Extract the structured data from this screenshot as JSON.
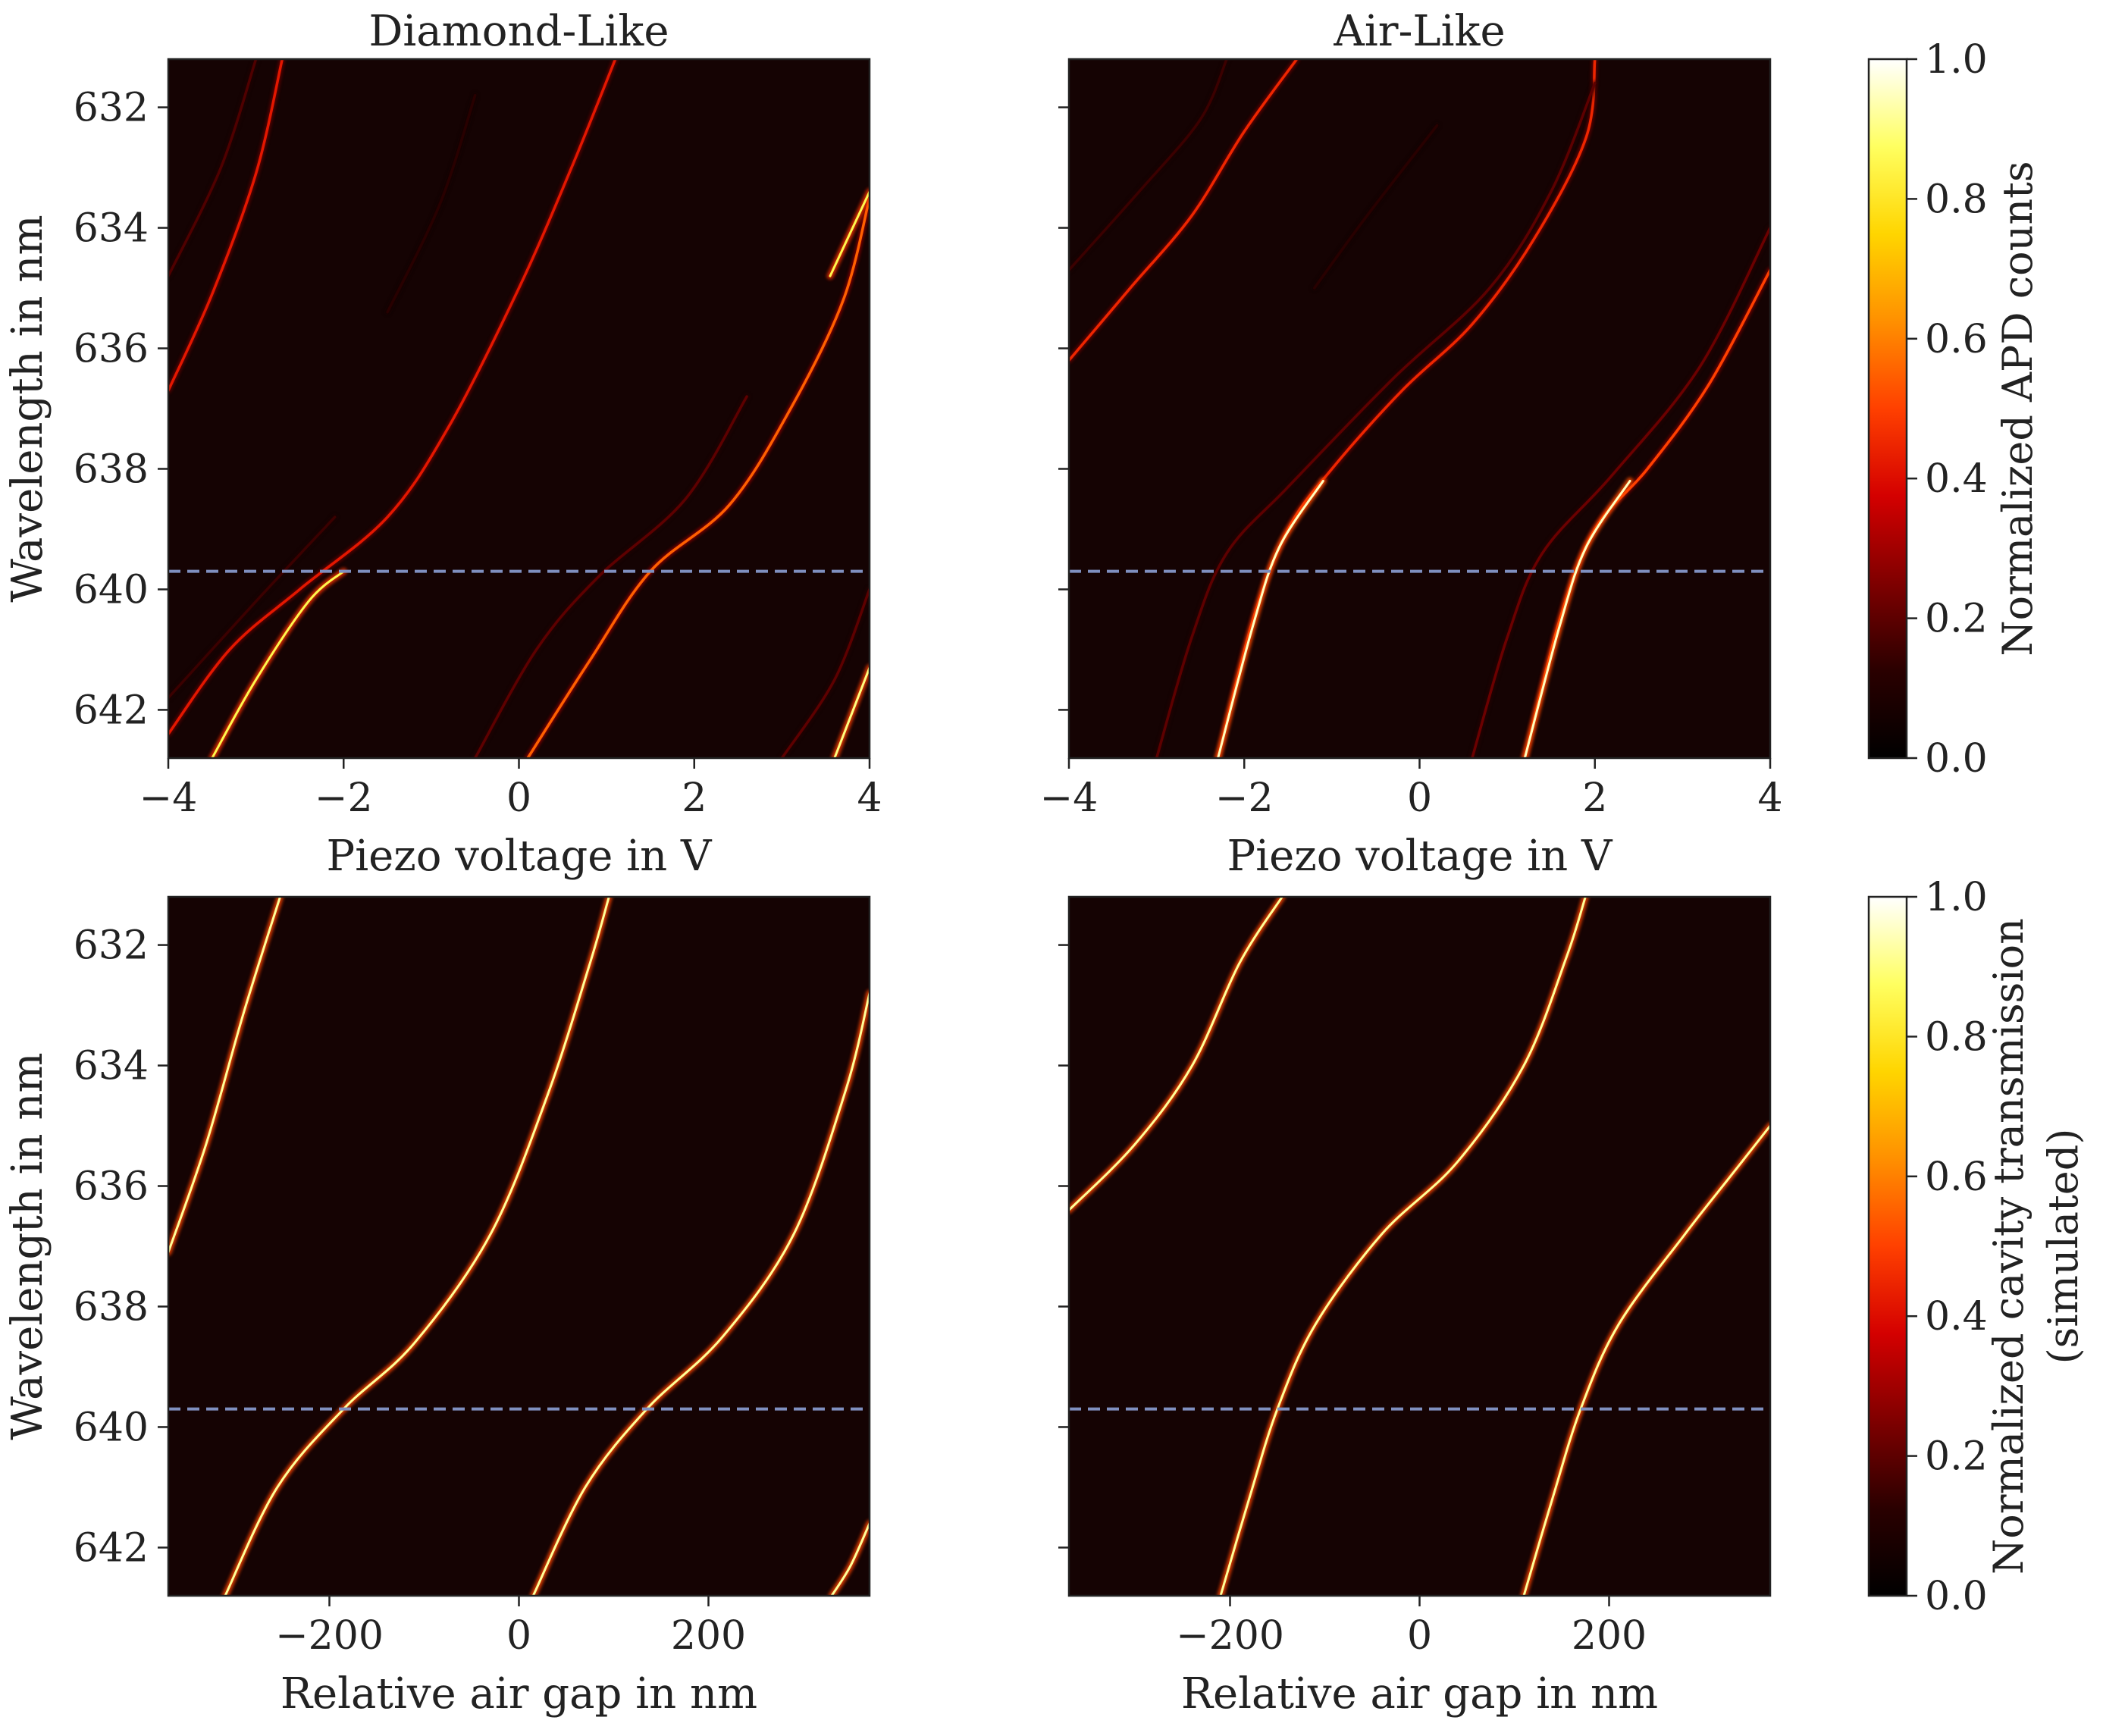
{
  "colors": {
    "background": "#150303",
    "dashed_line": "#7f8fbf",
    "colormap": [
      "#000000",
      "#2a0000",
      "#7f0000",
      "#d40000",
      "#ff4000",
      "#ff9000",
      "#ffd500",
      "#ffff60",
      "#ffffff"
    ]
  },
  "chart_data": [
    {
      "id": "top-left",
      "type": "heatmap",
      "title": "Diamond-Like",
      "xlabel": "Piezo voltage in V",
      "ylabel": "Wavelength in nm",
      "xlim": [
        -4,
        4
      ],
      "ylim": [
        631.2,
        642.8
      ],
      "xticks": [
        -4,
        -2,
        0,
        2,
        4
      ],
      "xtick_labels": [
        "−4",
        "−2",
        "0",
        "2",
        "4"
      ],
      "yticks": [
        632,
        634,
        636,
        638,
        640,
        642
      ],
      "ytick_labels": [
        "632",
        "634",
        "636",
        "638",
        "640",
        "642"
      ],
      "reference_wavelength": 639.7,
      "modes": [
        {
          "name": "mode-a",
          "points": [
            [
              -4.0,
              636.7
            ],
            [
              -3.5,
              635.1
            ],
            [
              -3.0,
              633.1
            ],
            [
              -2.7,
              631.2
            ]
          ],
          "intensity": 0.42
        },
        {
          "name": "mode-b",
          "points": [
            [
              -4.0,
              642.4
            ],
            [
              -3.3,
              641.0
            ],
            [
              -2.5,
              640.0
            ],
            [
              -1.5,
              638.8
            ],
            [
              -0.8,
              637.3
            ],
            [
              0.0,
              635.0
            ],
            [
              0.6,
              633.0
            ],
            [
              1.1,
              631.2
            ]
          ],
          "intensity": 0.42
        },
        {
          "name": "mode-b-bright",
          "points": [
            [
              -3.5,
              642.8
            ],
            [
              -3.0,
              641.5
            ],
            [
              -2.4,
              640.2
            ],
            [
              -2.0,
              639.7
            ]
          ],
          "intensity": 0.85
        },
        {
          "name": "mode-c",
          "points": [
            [
              0.1,
              642.8
            ],
            [
              0.8,
              641.2
            ],
            [
              1.5,
              639.7
            ],
            [
              2.4,
              638.6
            ],
            [
              3.1,
              637.0
            ],
            [
              3.7,
              635.2
            ],
            [
              4.0,
              633.5
            ]
          ],
          "intensity": 0.55
        },
        {
          "name": "mode-c-top",
          "points": [
            [
              3.55,
              634.8
            ],
            [
              4.0,
              633.4
            ]
          ],
          "intensity": 0.85
        },
        {
          "name": "mode-d",
          "points": [
            [
              3.6,
              642.8
            ],
            [
              4.0,
              641.3
            ]
          ],
          "intensity": 0.9
        },
        {
          "name": "mode-faint-1",
          "points": [
            [
              -4.0,
              634.8
            ],
            [
              -3.4,
              633.0
            ],
            [
              -3.0,
              631.2
            ]
          ],
          "intensity": 0.18
        },
        {
          "name": "mode-faint-2",
          "points": [
            [
              -0.5,
              642.8
            ],
            [
              0.2,
              641.0
            ],
            [
              0.9,
              639.8
            ],
            [
              1.9,
              638.5
            ],
            [
              2.6,
              636.8
            ]
          ],
          "intensity": 0.2
        },
        {
          "name": "mode-faint-3",
          "points": [
            [
              -4.0,
              641.8
            ],
            [
              -3.0,
              640.2
            ],
            [
              -2.1,
              638.8
            ]
          ],
          "intensity": 0.15
        },
        {
          "name": "mode-faint-4",
          "points": [
            [
              3.0,
              642.8
            ],
            [
              3.6,
              641.5
            ],
            [
              4.0,
              640.0
            ]
          ],
          "intensity": 0.2
        },
        {
          "name": "mode-faint-5",
          "points": [
            [
              -1.5,
              635.4
            ],
            [
              -0.9,
              633.6
            ],
            [
              -0.5,
              631.8
            ]
          ],
          "intensity": 0.12
        }
      ]
    },
    {
      "id": "top-right",
      "type": "heatmap",
      "title": "Air-Like",
      "xlabel": "Piezo voltage in V",
      "ylabel": "",
      "xlim": [
        -4,
        4
      ],
      "ylim": [
        631.2,
        642.8
      ],
      "xticks": [
        -4,
        -2,
        0,
        2,
        4
      ],
      "xtick_labels": [
        "−4",
        "−2",
        "0",
        "2",
        "4"
      ],
      "yticks": [
        632,
        634,
        636,
        638,
        640,
        642
      ],
      "ytick_labels": [],
      "reference_wavelength": 639.7,
      "modes": [
        {
          "name": "mode-a",
          "points": [
            [
              -4.0,
              636.2
            ],
            [
              -3.3,
              635.0
            ],
            [
              -2.6,
              633.8
            ],
            [
              -2.0,
              632.4
            ],
            [
              -1.4,
              631.2
            ]
          ],
          "intensity": 0.45
        },
        {
          "name": "mode-b",
          "points": [
            [
              -2.3,
              642.8
            ],
            [
              -1.9,
              640.5
            ],
            [
              -1.5,
              639.0
            ],
            [
              -1.0,
              638.0
            ],
            [
              -0.2,
              636.7
            ],
            [
              0.6,
              635.6
            ],
            [
              1.3,
              634.2
            ],
            [
              1.9,
              632.5
            ],
            [
              2.0,
              631.2
            ]
          ],
          "intensity": 0.45
        },
        {
          "name": "mode-b-bright",
          "points": [
            [
              -2.3,
              642.8
            ],
            [
              -1.9,
              640.6
            ],
            [
              -1.6,
              639.3
            ],
            [
              -1.1,
              638.2
            ]
          ],
          "intensity": 0.95
        },
        {
          "name": "mode-c",
          "points": [
            [
              1.2,
              642.8
            ],
            [
              1.6,
              640.5
            ],
            [
              2.0,
              639.0
            ],
            [
              2.6,
              638.0
            ],
            [
              3.3,
              636.6
            ],
            [
              4.0,
              634.7
            ]
          ],
          "intensity": 0.5
        },
        {
          "name": "mode-c-bright",
          "points": [
            [
              1.2,
              642.8
            ],
            [
              1.6,
              640.6
            ],
            [
              1.9,
              639.3
            ],
            [
              2.4,
              638.2
            ]
          ],
          "intensity": 0.95
        },
        {
          "name": "mode-faint-1",
          "points": [
            [
              -4.0,
              634.7
            ],
            [
              -3.2,
              633.4
            ],
            [
              -2.5,
              632.2
            ],
            [
              -2.2,
              631.2
            ]
          ],
          "intensity": 0.15
        },
        {
          "name": "mode-faint-2",
          "points": [
            [
              -3.0,
              642.8
            ],
            [
              -2.6,
              640.8
            ],
            [
              -2.2,
              639.4
            ],
            [
              -1.5,
              638.3
            ],
            [
              -0.3,
              636.5
            ],
            [
              0.8,
              635.0
            ],
            [
              1.5,
              633.4
            ],
            [
              2.0,
              631.6
            ]
          ],
          "intensity": 0.2
        },
        {
          "name": "mode-faint-3",
          "points": [
            [
              0.6,
              642.8
            ],
            [
              1.0,
              640.8
            ],
            [
              1.4,
              639.4
            ],
            [
              2.2,
              638.1
            ],
            [
              3.2,
              636.3
            ],
            [
              4.0,
              634.0
            ]
          ],
          "intensity": 0.22
        },
        {
          "name": "mode-faint-4",
          "points": [
            [
              -1.2,
              635.0
            ],
            [
              -0.6,
              633.8
            ],
            [
              0.2,
              632.3
            ]
          ],
          "intensity": 0.12
        }
      ]
    },
    {
      "id": "bottom-left",
      "type": "heatmap",
      "title": "",
      "xlabel": "Relative air gap in nm",
      "ylabel": "Wavelength in nm",
      "xlim": [
        -370,
        370
      ],
      "ylim": [
        631.2,
        642.8
      ],
      "xticks": [
        -200,
        0,
        200
      ],
      "xtick_labels": [
        "−200",
        "0",
        "200"
      ],
      "yticks": [
        632,
        634,
        636,
        638,
        640,
        642
      ],
      "ytick_labels": [
        "632",
        "634",
        "636",
        "638",
        "640",
        "642"
      ],
      "reference_wavelength": 639.7,
      "modes": [
        {
          "name": "mode-a",
          "points": [
            [
              -370,
              637.1
            ],
            [
              -330,
              635.3
            ],
            [
              -290,
              633.1
            ],
            [
              -252,
              631.2
            ]
          ],
          "intensity": 0.92
        },
        {
          "name": "mode-b",
          "points": [
            [
              -310,
              642.8
            ],
            [
              -255,
              641.0
            ],
            [
              -185,
              639.7
            ],
            [
              -110,
              638.6
            ],
            [
              -30,
              636.8
            ],
            [
              30,
              634.5
            ],
            [
              75,
              632.3
            ],
            [
              95,
              631.2
            ]
          ],
          "intensity": 0.92
        },
        {
          "name": "mode-c",
          "points": [
            [
              15,
              642.8
            ],
            [
              70,
              641.0
            ],
            [
              135,
              639.7
            ],
            [
              215,
              638.5
            ],
            [
              290,
              636.8
            ],
            [
              345,
              634.4
            ],
            [
              370,
              632.8
            ]
          ],
          "intensity": 0.92
        },
        {
          "name": "mode-d",
          "points": [
            [
              330,
              642.8
            ],
            [
              350,
              642.3
            ],
            [
              370,
              641.6
            ]
          ],
          "intensity": 0.92
        }
      ]
    },
    {
      "id": "bottom-right",
      "type": "heatmap",
      "title": "",
      "xlabel": "Relative air gap in nm",
      "ylabel": "",
      "xlim": [
        -370,
        370
      ],
      "ylim": [
        631.2,
        642.8
      ],
      "xticks": [
        -200,
        0,
        200
      ],
      "xtick_labels": [
        "−200",
        "0",
        "200"
      ],
      "yticks": [
        632,
        634,
        636,
        638,
        640,
        642
      ],
      "ytick_labels": [],
      "reference_wavelength": 639.7,
      "modes": [
        {
          "name": "mode-a",
          "points": [
            [
              -370,
              636.4
            ],
            [
              -300,
              635.3
            ],
            [
              -240,
              634.0
            ],
            [
              -190,
              632.3
            ],
            [
              -145,
              631.2
            ]
          ],
          "intensity": 0.92
        },
        {
          "name": "mode-b",
          "points": [
            [
              -210,
              642.8
            ],
            [
              -180,
              641.2
            ],
            [
              -150,
              639.7
            ],
            [
              -110,
              638.3
            ],
            [
              -40,
              636.8
            ],
            [
              40,
              635.6
            ],
            [
              110,
              634.0
            ],
            [
              155,
              632.2
            ],
            [
              175,
              631.2
            ]
          ],
          "intensity": 0.92
        },
        {
          "name": "mode-c",
          "points": [
            [
              110,
              642.8
            ],
            [
              140,
              641.2
            ],
            [
              170,
              639.7
            ],
            [
              210,
              638.3
            ],
            [
              280,
              636.8
            ],
            [
              330,
              635.8
            ],
            [
              370,
              635.0
            ]
          ],
          "intensity": 0.92
        }
      ]
    }
  ],
  "colorbars": [
    {
      "id": "colorbar-top",
      "label": "Normalized APD counts",
      "label_line2": "",
      "range": [
        0.0,
        1.0
      ],
      "ticks": [
        0.0,
        0.2,
        0.4,
        0.6,
        0.8,
        1.0
      ],
      "tick_labels": [
        "0.0",
        "0.2",
        "0.4",
        "0.6",
        "0.8",
        "1.0"
      ]
    },
    {
      "id": "colorbar-bottom",
      "label": "Normalized cavity transmission",
      "label_line2": "(simulated)",
      "range": [
        0.0,
        1.0
      ],
      "ticks": [
        0.0,
        0.2,
        0.4,
        0.6,
        0.8,
        1.0
      ],
      "tick_labels": [
        "0.0",
        "0.2",
        "0.4",
        "0.6",
        "0.8",
        "1.0"
      ]
    }
  ]
}
